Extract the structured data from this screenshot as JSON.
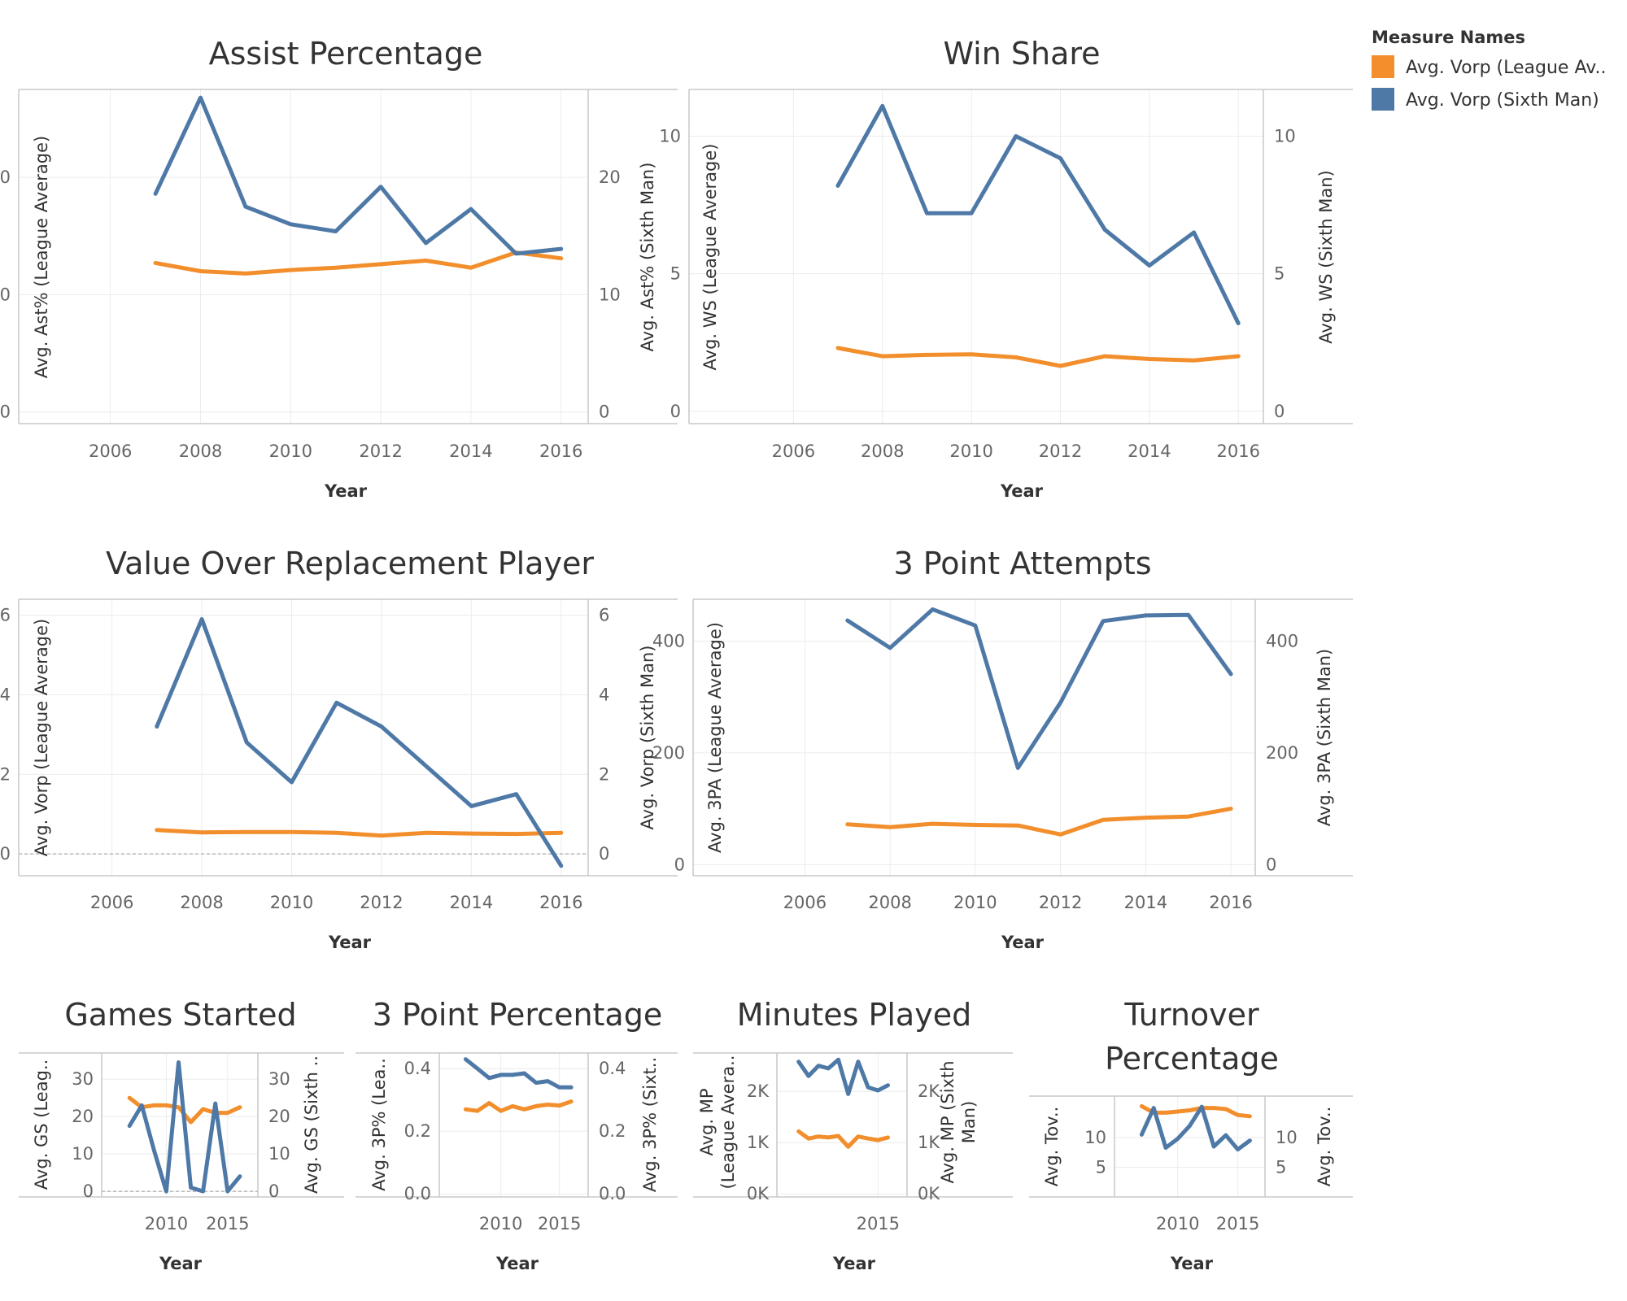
{
  "legend": {
    "title": "Measure Names",
    "items": [
      {
        "label": "Avg. Vorp (League Av..",
        "color": "#f28e2b"
      },
      {
        "label": "Avg. Vorp (Sixth Man)",
        "color": "#4e79a7"
      }
    ]
  },
  "colors": {
    "league": "#f28e2b",
    "sixth": "#4e79a7"
  },
  "chart_data": [
    {
      "id": "assist-percentage",
      "type": "line",
      "title": [
        "Assist Percentage"
      ],
      "xlabel": "Year",
      "ylabel_left": [
        "Avg. Ast% (League Average)"
      ],
      "ylabel_right": [
        "Avg. Ast% (Sixth Man)"
      ],
      "xlim": [
        2005.5,
        2016.8
      ],
      "xticks": [
        2006,
        2008,
        2010,
        2012,
        2014,
        2016
      ],
      "xtick_labels": [
        "2006",
        "2008",
        "2010",
        "2012",
        "2014",
        "2016"
      ],
      "ylim": [
        -1,
        27.5
      ],
      "yticks": [
        0,
        10,
        20
      ],
      "ytick_labels": [
        "0",
        "10",
        "20"
      ],
      "x": [
        2007,
        2008,
        2009,
        2010,
        2011,
        2012,
        2013,
        2014,
        2015,
        2016
      ],
      "series": [
        {
          "key": "league",
          "values": [
            12.7,
            12.0,
            11.8,
            12.1,
            12.3,
            12.6,
            12.9,
            12.3,
            13.6,
            13.1
          ]
        },
        {
          "key": "sixth",
          "values": [
            18.6,
            26.8,
            17.5,
            16.0,
            15.4,
            19.2,
            14.4,
            17.3,
            13.5,
            13.9
          ]
        }
      ]
    },
    {
      "id": "win-share",
      "type": "line",
      "title": [
        "Win Share"
      ],
      "xlabel": "Year",
      "ylabel_left": [
        "Avg. WS (League Average)"
      ],
      "ylabel_right": [
        "Avg. WS (Sixth Man)"
      ],
      "xlim": [
        2005.5,
        2016.8
      ],
      "xticks": [
        2006,
        2008,
        2010,
        2012,
        2014,
        2016
      ],
      "xtick_labels": [
        "2006",
        "2008",
        "2010",
        "2012",
        "2014",
        "2016"
      ],
      "ylim": [
        -0.45,
        11.7
      ],
      "yticks": [
        0,
        5,
        10
      ],
      "ytick_labels": [
        "0",
        "5",
        "10"
      ],
      "x": [
        2007,
        2008,
        2009,
        2010,
        2011,
        2012,
        2013,
        2014,
        2015,
        2016
      ],
      "series": [
        {
          "key": "league",
          "values": [
            2.3,
            2.0,
            2.05,
            2.07,
            1.96,
            1.65,
            2.0,
            1.9,
            1.85,
            2.0
          ]
        },
        {
          "key": "sixth",
          "values": [
            8.2,
            11.1,
            7.2,
            7.2,
            10.0,
            9.2,
            6.6,
            5.3,
            6.5,
            3.2
          ]
        }
      ]
    },
    {
      "id": "vorp",
      "type": "line",
      "title": [
        "Value Over Replacement Player"
      ],
      "xlabel": "Year",
      "ylabel_left": [
        "Avg. Vorp (League Average)"
      ],
      "ylabel_right": [
        "Avg. Vorp (Sixth Man)"
      ],
      "xlim": [
        2005.5,
        2016.8
      ],
      "xticks": [
        2006,
        2008,
        2010,
        2012,
        2014,
        2016
      ],
      "xtick_labels": [
        "2006",
        "2008",
        "2010",
        "2012",
        "2014",
        "2016"
      ],
      "ylim": [
        -0.55,
        6.4
      ],
      "yticks": [
        0,
        2,
        4,
        6
      ],
      "ytick_labels": [
        "0",
        "2",
        "4",
        "6"
      ],
      "zero_line": true,
      "x": [
        2007,
        2008,
        2009,
        2010,
        2011,
        2012,
        2013,
        2014,
        2015,
        2016
      ],
      "series": [
        {
          "key": "league",
          "values": [
            0.6,
            0.54,
            0.55,
            0.55,
            0.53,
            0.46,
            0.53,
            0.51,
            0.5,
            0.53
          ]
        },
        {
          "key": "sixth",
          "values": [
            3.2,
            5.9,
            2.8,
            1.8,
            3.8,
            3.2,
            2.2,
            1.2,
            1.5,
            -0.3
          ]
        }
      ]
    },
    {
      "id": "three-point-attempts",
      "type": "line",
      "title": [
        "3 Point Attempts"
      ],
      "xlabel": "Year",
      "ylabel_left": [
        "Avg. 3PA (League Average)"
      ],
      "ylabel_right": [
        "Avg. 3PA (Sixth Man)"
      ],
      "xlim": [
        2005.4,
        2016.8
      ],
      "xticks": [
        2006,
        2008,
        2010,
        2012,
        2014,
        2016
      ],
      "xtick_labels": [
        "2006",
        "2008",
        "2010",
        "2012",
        "2014",
        "2016"
      ],
      "ylim": [
        -20,
        475
      ],
      "yticks": [
        0,
        200,
        400
      ],
      "ytick_labels": [
        "0",
        "200",
        "400"
      ],
      "x": [
        2007,
        2008,
        2009,
        2010,
        2011,
        2012,
        2013,
        2014,
        2015,
        2016
      ],
      "series": [
        {
          "key": "league",
          "values": [
            72,
            67,
            73,
            71,
            70,
            54,
            80,
            84,
            86,
            100
          ]
        },
        {
          "key": "sixth",
          "values": [
            437,
            388,
            457,
            428,
            173,
            290,
            436,
            446,
            447,
            341
          ]
        }
      ]
    },
    {
      "id": "games-started",
      "type": "line",
      "title": [
        "Games Started"
      ],
      "xlabel": "Year",
      "ylabel_left": [
        "Avg. GS (Leag.."
      ],
      "ylabel_right": [
        "Avg. GS (Sixth .."
      ],
      "xlim": [
        2004.4,
        2017.8
      ],
      "xticks": [
        2010,
        2015
      ],
      "xtick_labels": [
        "2010",
        "2015"
      ],
      "ylim": [
        -1.5,
        37
      ],
      "yticks": [
        0,
        10,
        20,
        30
      ],
      "ytick_labels": [
        "0",
        "10",
        "20",
        "30"
      ],
      "zero_line": true,
      "x": [
        2007,
        2008,
        2009,
        2010,
        2011,
        2012,
        2013,
        2014,
        2015,
        2016
      ],
      "series": [
        {
          "key": "league",
          "values": [
            25,
            22.5,
            23,
            23,
            22.5,
            18.5,
            22,
            21,
            21,
            22.5
          ]
        },
        {
          "key": "sixth",
          "values": [
            17.5,
            23,
            11,
            0,
            34.5,
            1,
            0,
            23.5,
            0,
            4
          ]
        }
      ]
    },
    {
      "id": "three-point-percentage",
      "type": "line",
      "title": [
        "3 Point Percentage"
      ],
      "xlabel": "Year",
      "ylabel_left": [
        "Avg. 3P% (Lea.."
      ],
      "ylabel_right": [
        "Avg. 3P% (Sixt.."
      ],
      "xlim": [
        2004.4,
        2017.8
      ],
      "xticks": [
        2010,
        2015
      ],
      "xtick_labels": [
        "2010",
        "2015"
      ],
      "ylim": [
        -0.01,
        0.45
      ],
      "yticks": [
        0,
        0.2,
        0.4
      ],
      "ytick_labels": [
        "0.0",
        "0.2",
        "0.4"
      ],
      "x": [
        2007,
        2008,
        2009,
        2010,
        2011,
        2012,
        2013,
        2014,
        2015,
        2016
      ],
      "series": [
        {
          "key": "league",
          "values": [
            0.27,
            0.265,
            0.29,
            0.265,
            0.28,
            0.27,
            0.28,
            0.285,
            0.282,
            0.295
          ]
        },
        {
          "key": "sixth",
          "values": [
            0.43,
            0.4,
            0.37,
            0.38,
            0.38,
            0.385,
            0.355,
            0.36,
            0.34,
            0.34
          ]
        }
      ]
    },
    {
      "id": "minutes-played",
      "type": "line",
      "title": [
        "Minutes Played"
      ],
      "xlabel": "Year",
      "ylabel_left": [
        "Avg. MP",
        "(League Avera.."
      ],
      "ylabel_right": [
        "Avg. MP (Sixth",
        "Man)"
      ],
      "xlim": [
        2004.4,
        2018.5
      ],
      "xticks": [
        2015
      ],
      "xtick_labels": [
        "2015"
      ],
      "ylim": [
        -60,
        2750
      ],
      "yticks": [
        0,
        1000,
        2000
      ],
      "ytick_labels": [
        "0K",
        "1K",
        "2K"
      ],
      "x": [
        2007,
        2008,
        2009,
        2010,
        2011,
        2012,
        2013,
        2014,
        2015,
        2016
      ],
      "series": [
        {
          "key": "league",
          "values": [
            1220,
            1080,
            1120,
            1100,
            1130,
            920,
            1120,
            1080,
            1050,
            1100
          ]
        },
        {
          "key": "sixth",
          "values": [
            2580,
            2300,
            2500,
            2450,
            2620,
            1950,
            2580,
            2080,
            2020,
            2120
          ]
        }
      ]
    },
    {
      "id": "turnover-percentage",
      "type": "line",
      "title": [
        "Turnover",
        "Percentage"
      ],
      "xlabel": "Year",
      "ylabel_left": [
        "Avg. Tov.."
      ],
      "ylabel_right": [
        "Avg. Tov.."
      ],
      "xlim": [
        2004.4,
        2017.8
      ],
      "xticks": [
        2010,
        2015
      ],
      "xtick_labels": [
        "2010",
        "2015"
      ],
      "ylim": [
        0,
        17
      ],
      "yticks": [
        5,
        10
      ],
      "ytick_labels": [
        "5",
        "10"
      ],
      "x": [
        2007,
        2008,
        2009,
        2010,
        2011,
        2012,
        2013,
        2014,
        2015,
        2016
      ],
      "series": [
        {
          "key": "league",
          "values": [
            15.3,
            14.2,
            14.2,
            14.4,
            14.6,
            15.0,
            15.0,
            14.8,
            13.8,
            13.6
          ]
        },
        {
          "key": "sixth",
          "values": [
            10.5,
            15.0,
            8.3,
            9.8,
            12.0,
            15.2,
            8.5,
            10.4,
            8.0,
            9.5
          ]
        }
      ]
    }
  ]
}
